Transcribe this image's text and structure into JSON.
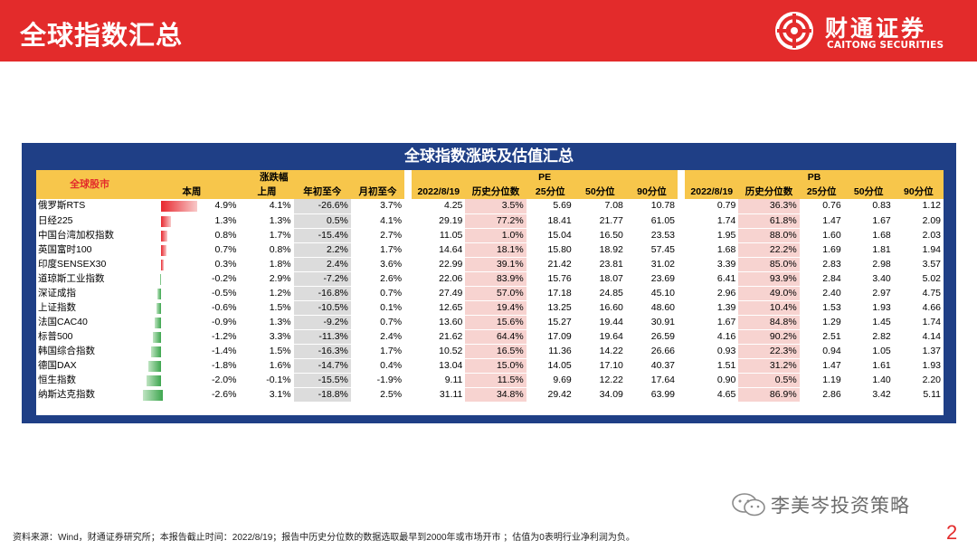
{
  "header": {
    "title": "全球指数汇总",
    "logo_cn": "财通证券",
    "logo_en": "CAITONG SECURITIES"
  },
  "table": {
    "title": "全球指数涨跌及估值汇总",
    "corner_label": "全球股市",
    "group_labels": {
      "change": "涨跌幅",
      "pe": "PE",
      "pb": "PB"
    },
    "change_headers": [
      "本周",
      "上周",
      "年初至今",
      "月初至今"
    ],
    "pe_headers": [
      "2022/8/19",
      "历史分位数",
      "25分位",
      "50分位",
      "90分位"
    ],
    "pb_headers": [
      "2022/8/19",
      "历史分位数",
      "25分位",
      "50分位",
      "90分位"
    ],
    "rows": [
      {
        "name": "俄罗斯RTS",
        "week": "4.9%",
        "week_value": 4.9,
        "last_week": "4.1%",
        "ytd": "-26.6%",
        "mtd": "3.7%",
        "pe": "4.25",
        "pe_pct": "3.5%",
        "pe25": "5.69",
        "pe50": "7.08",
        "pe90": "10.78",
        "pb": "0.79",
        "pb_pct": "36.3%",
        "pb25": "0.76",
        "pb50": "0.83",
        "pb90": "1.12"
      },
      {
        "name": "日经225",
        "week": "1.3%",
        "week_value": 1.3,
        "last_week": "1.3%",
        "ytd": "0.5%",
        "mtd": "4.1%",
        "pe": "29.19",
        "pe_pct": "77.2%",
        "pe25": "18.41",
        "pe50": "21.77",
        "pe90": "61.05",
        "pb": "1.74",
        "pb_pct": "61.8%",
        "pb25": "1.47",
        "pb50": "1.67",
        "pb90": "2.09"
      },
      {
        "name": "中国台湾加权指数",
        "week": "0.8%",
        "week_value": 0.8,
        "last_week": "1.7%",
        "ytd": "-15.4%",
        "mtd": "2.7%",
        "pe": "11.05",
        "pe_pct": "1.0%",
        "pe25": "15.04",
        "pe50": "16.50",
        "pe90": "23.53",
        "pb": "1.95",
        "pb_pct": "88.0%",
        "pb25": "1.60",
        "pb50": "1.68",
        "pb90": "2.03"
      },
      {
        "name": "英国富时100",
        "week": "0.7%",
        "week_value": 0.7,
        "last_week": "0.8%",
        "ytd": "2.2%",
        "mtd": "1.7%",
        "pe": "14.64",
        "pe_pct": "18.1%",
        "pe25": "15.80",
        "pe50": "18.92",
        "pe90": "57.45",
        "pb": "1.68",
        "pb_pct": "22.2%",
        "pb25": "1.69",
        "pb50": "1.81",
        "pb90": "1.94"
      },
      {
        "name": "印度SENSEX30",
        "week": "0.3%",
        "week_value": 0.3,
        "last_week": "1.8%",
        "ytd": "2.4%",
        "mtd": "3.6%",
        "pe": "22.99",
        "pe_pct": "39.1%",
        "pe25": "21.42",
        "pe50": "23.81",
        "pe90": "31.02",
        "pb": "3.39",
        "pb_pct": "85.0%",
        "pb25": "2.83",
        "pb50": "2.98",
        "pb90": "3.57"
      },
      {
        "name": "道琼斯工业指数",
        "week": "-0.2%",
        "week_value": -0.2,
        "last_week": "2.9%",
        "ytd": "-7.2%",
        "mtd": "2.6%",
        "pe": "22.06",
        "pe_pct": "83.9%",
        "pe25": "15.76",
        "pe50": "18.07",
        "pe90": "23.69",
        "pb": "6.41",
        "pb_pct": "93.9%",
        "pb25": "2.84",
        "pb50": "3.40",
        "pb90": "5.02"
      },
      {
        "name": "深证成指",
        "week": "-0.5%",
        "week_value": -0.5,
        "last_week": "1.2%",
        "ytd": "-16.8%",
        "mtd": "0.7%",
        "pe": "27.49",
        "pe_pct": "57.0%",
        "pe25": "17.18",
        "pe50": "24.85",
        "pe90": "45.10",
        "pb": "2.96",
        "pb_pct": "49.0%",
        "pb25": "2.40",
        "pb50": "2.97",
        "pb90": "4.75"
      },
      {
        "name": "上证指数",
        "week": "-0.6%",
        "week_value": -0.6,
        "last_week": "1.5%",
        "ytd": "-10.5%",
        "mtd": "0.1%",
        "pe": "12.65",
        "pe_pct": "19.4%",
        "pe25": "13.25",
        "pe50": "16.60",
        "pe90": "48.60",
        "pb": "1.39",
        "pb_pct": "10.4%",
        "pb25": "1.53",
        "pb50": "1.93",
        "pb90": "4.66"
      },
      {
        "name": "法国CAC40",
        "week": "-0.9%",
        "week_value": -0.9,
        "last_week": "1.3%",
        "ytd": "-9.2%",
        "mtd": "0.7%",
        "pe": "13.60",
        "pe_pct": "15.6%",
        "pe25": "15.27",
        "pe50": "19.44",
        "pe90": "30.91",
        "pb": "1.67",
        "pb_pct": "84.8%",
        "pb25": "1.29",
        "pb50": "1.45",
        "pb90": "1.74"
      },
      {
        "name": "标普500",
        "week": "-1.2%",
        "week_value": -1.2,
        "last_week": "3.3%",
        "ytd": "-11.3%",
        "mtd": "2.4%",
        "pe": "21.62",
        "pe_pct": "64.4%",
        "pe25": "17.09",
        "pe50": "19.64",
        "pe90": "26.59",
        "pb": "4.16",
        "pb_pct": "90.2%",
        "pb25": "2.51",
        "pb50": "2.82",
        "pb90": "4.14"
      },
      {
        "name": "韩国综合指数",
        "week": "-1.4%",
        "week_value": -1.4,
        "last_week": "1.5%",
        "ytd": "-16.3%",
        "mtd": "1.7%",
        "pe": "10.52",
        "pe_pct": "16.5%",
        "pe25": "11.36",
        "pe50": "14.22",
        "pe90": "26.66",
        "pb": "0.93",
        "pb_pct": "22.3%",
        "pb25": "0.94",
        "pb50": "1.05",
        "pb90": "1.37"
      },
      {
        "name": "德国DAX",
        "week": "-1.8%",
        "week_value": -1.8,
        "last_week": "1.6%",
        "ytd": "-14.7%",
        "mtd": "0.4%",
        "pe": "13.04",
        "pe_pct": "15.0%",
        "pe25": "14.05",
        "pe50": "17.10",
        "pe90": "40.37",
        "pb": "1.51",
        "pb_pct": "31.2%",
        "pb25": "1.47",
        "pb50": "1.61",
        "pb90": "1.93"
      },
      {
        "name": "恒生指数",
        "week": "-2.0%",
        "week_value": -2.0,
        "last_week": "-0.1%",
        "ytd": "-15.5%",
        "mtd": "-1.9%",
        "pe": "9.11",
        "pe_pct": "11.5%",
        "pe25": "9.69",
        "pe50": "12.22",
        "pe90": "17.64",
        "pb": "0.90",
        "pb_pct": "0.5%",
        "pb25": "1.19",
        "pb50": "1.40",
        "pb90": "2.20"
      },
      {
        "name": "纳斯达克指数",
        "week": "-2.6%",
        "week_value": -2.6,
        "last_week": "3.1%",
        "ytd": "-18.8%",
        "mtd": "2.5%",
        "pe": "31.11",
        "pe_pct": "34.8%",
        "pe25": "29.42",
        "pe50": "34.09",
        "pe90": "63.99",
        "pb": "4.65",
        "pb_pct": "86.9%",
        "pb25": "2.86",
        "pb50": "3.42",
        "pb90": "5.11"
      }
    ]
  },
  "footnote": "资料来源：Wind，财通证券研究所；本报告截止时间：2022/8/19；报告中历史分位数的数据选取最早到2000年或市场开市 ；估值为0表明行业净利润为负。",
  "watermark": "李美岑投资策略",
  "page_number": "2",
  "colors": {
    "brand_red": "#e32b2b",
    "frame_blue": "#1f3f86",
    "header_gold": "#f7c64b",
    "up_bar": "#e8282f",
    "down_bar": "#3ea64f",
    "grey_highlight": "#dcdcdc",
    "pink_highlight": "#f7d3d0"
  }
}
